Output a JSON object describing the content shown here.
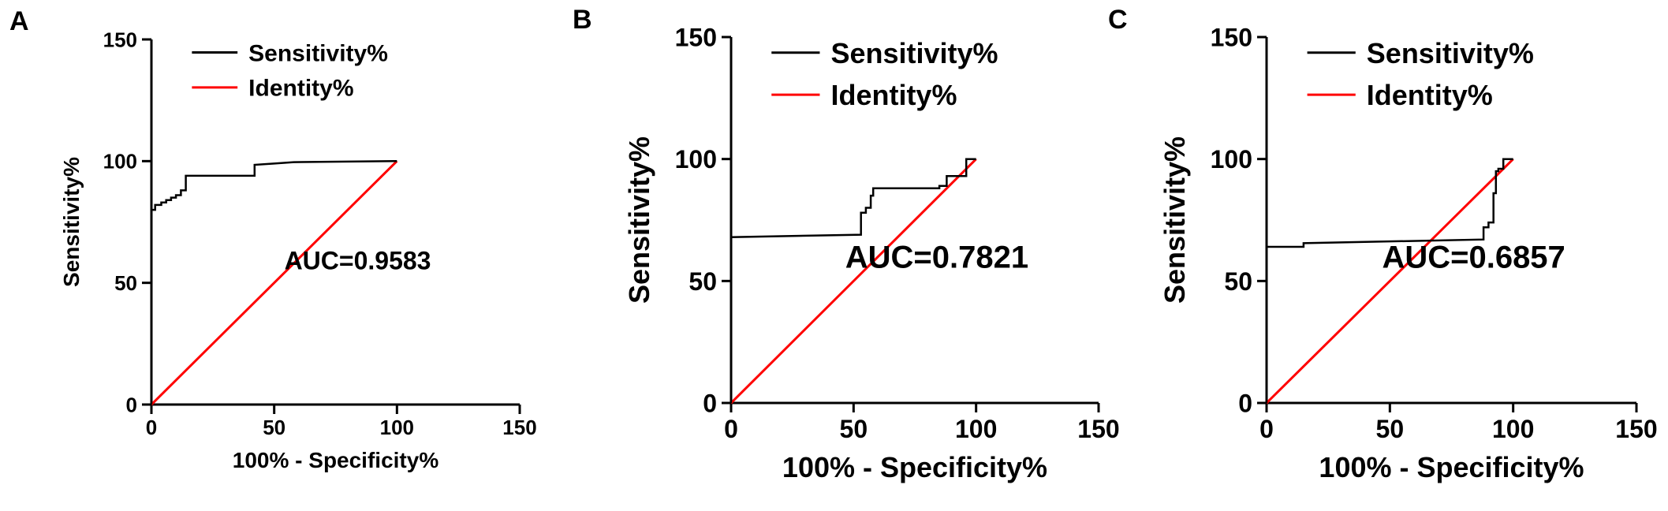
{
  "chart_data": [
    {
      "type": "line",
      "panel_label": "A",
      "xlabel": "100% - Specificity%",
      "ylabel": "Sensitivity%",
      "xlim": [
        0,
        150
      ],
      "ylim": [
        0,
        150
      ],
      "xticks": [
        "0",
        "50",
        "100",
        "150"
      ],
      "yticks": [
        "0",
        "50",
        "100",
        "150"
      ],
      "legend_position": "top",
      "annotation": "AUC=0.9583",
      "series": [
        {
          "name": "Sensitivity%",
          "color": "#000000",
          "x": [
            0,
            0,
            1.5,
            1.5,
            4,
            4,
            6,
            6,
            8,
            8,
            10,
            10,
            12,
            12,
            14,
            14,
            42,
            42,
            50,
            58,
            100
          ],
          "y": [
            0,
            80,
            80,
            82,
            82,
            83,
            83,
            84,
            84,
            85,
            85,
            86,
            86,
            88,
            88,
            94,
            94,
            98.5,
            99,
            99.6,
            100
          ]
        },
        {
          "name": "Identity%",
          "color": "#ff0000",
          "x": [
            0,
            100
          ],
          "y": [
            0,
            100
          ]
        }
      ]
    },
    {
      "type": "line",
      "panel_label": "B",
      "xlabel": "100% - Specificity%",
      "ylabel": "Sensitivity%",
      "xlim": [
        0,
        150
      ],
      "ylim": [
        0,
        150
      ],
      "xticks": [
        "0",
        "50",
        "100",
        "150"
      ],
      "yticks": [
        "0",
        "50",
        "100",
        "150"
      ],
      "legend_position": "top",
      "annotation": "AUC=0.7821",
      "series": [
        {
          "name": "Sensitivity%",
          "color": "#000000",
          "x": [
            0,
            0,
            53,
            53,
            55,
            55,
            57,
            57,
            58,
            58,
            85,
            85,
            88,
            88,
            96,
            96,
            100,
            100
          ],
          "y": [
            0,
            68,
            69,
            78,
            78,
            80,
            80,
            85,
            85,
            88,
            88,
            89,
            89,
            93,
            93,
            100,
            100,
            100
          ]
        },
        {
          "name": "Identity%",
          "color": "#ff0000",
          "x": [
            0,
            100
          ],
          "y": [
            0,
            100
          ]
        }
      ]
    },
    {
      "type": "line",
      "panel_label": "C",
      "xlabel": "100% - Specificity%",
      "ylabel": "Sensitivity%",
      "xlim": [
        0,
        150
      ],
      "ylim": [
        0,
        150
      ],
      "xticks": [
        "0",
        "50",
        "100",
        "150"
      ],
      "yticks": [
        "0",
        "50",
        "100",
        "150"
      ],
      "legend_position": "top",
      "annotation": "AUC=0.6857",
      "series": [
        {
          "name": "Sensitivity%",
          "color": "#000000",
          "x": [
            0,
            0,
            15,
            15,
            88,
            88,
            90,
            90,
            92,
            92,
            93,
            93,
            94,
            94,
            96,
            96,
            100,
            100
          ],
          "y": [
            0,
            64,
            64,
            65.5,
            67,
            72,
            72,
            74,
            74,
            86,
            86,
            95,
            95,
            96,
            96,
            100,
            100,
            100
          ]
        },
        {
          "name": "Identity%",
          "color": "#ff0000",
          "x": [
            0,
            100
          ],
          "y": [
            0,
            100
          ]
        }
      ]
    }
  ]
}
